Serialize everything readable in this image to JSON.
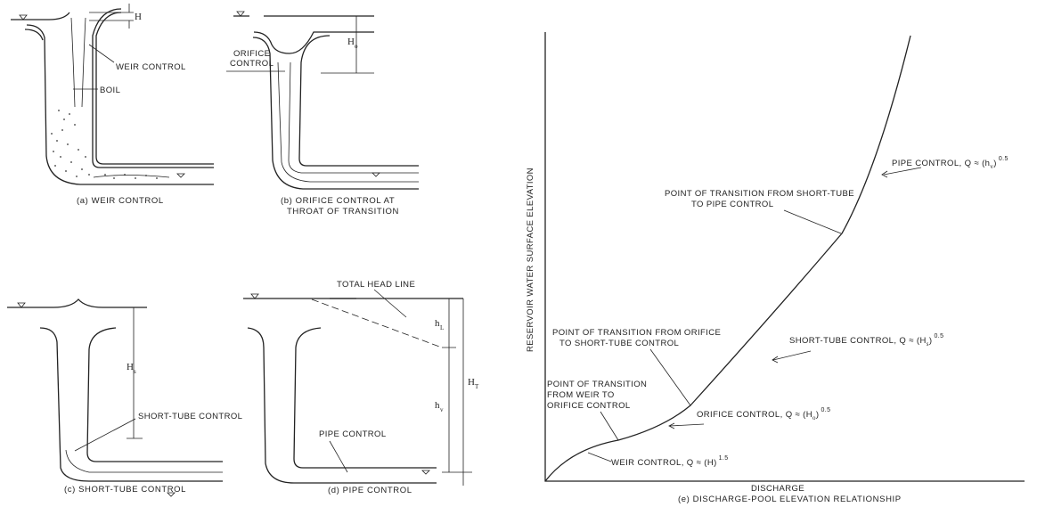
{
  "panel_a": {
    "head_label": "H",
    "weir_control_label": "WEIR CONTROL",
    "boil_label": "BOIL",
    "caption": "(a)    WEIR  CONTROL"
  },
  "panel_b": {
    "orifice_label_1": "ORIFICE",
    "orifice_label_2": "CONTROL",
    "head_label": "H",
    "head_sub": "o",
    "caption_1": "(b)  ORIFICE CONTROL AT",
    "caption_2": "THROAT OF TRANSITION"
  },
  "panel_c": {
    "head_label": "H",
    "head_sub": "s",
    "short_tube_label": "SHORT-TUBE CONTROL",
    "caption": "(c)    SHORT-TUBE  CONTROL"
  },
  "panel_d": {
    "total_head_line": "TOTAL HEAD LINE",
    "hl_label": "h",
    "hl_sub": "L",
    "hv_label": "h",
    "hv_sub": "v",
    "ht_label": "H",
    "ht_sub": "T",
    "pipe_control_label": "PIPE CONTROL",
    "caption": "(d)  PIPE  CONTROL"
  },
  "panel_e": {
    "y_axis_label": "RESERVOIR  WATER  SURFACE  ELEVATION",
    "x_axis_label": "DISCHARGE",
    "caption": "(e)    DISCHARGE-POOL  ELEVATION  RELATIONSHIP",
    "annotations": {
      "pipe_control": "PIPE CONTROL,  Q ≈ (h",
      "pipe_control_sub": "v",
      "pipe_control_exp": ")",
      "pipe_control_pow": "0.5",
      "transition_st_pipe_1": "POINT OF TRANSITION FROM SHORT-TUBE",
      "transition_st_pipe_2": "TO PIPE CONTROL",
      "short_tube_control": "SHORT-TUBE CONTROL,  Q ≈ (H",
      "short_tube_control_sub": "s",
      "short_tube_control_exp": ")",
      "short_tube_control_pow": "0.5",
      "transition_or_st_1": "POINT OF TRANSITION FROM ORIFICE",
      "transition_or_st_2": "TO SHORT-TUBE CONTROL",
      "transition_weir_or_1": "POINT OF TRANSITION",
      "transition_weir_or_2": "FROM WEIR TO",
      "transition_weir_or_3": "ORIFICE CONTROL",
      "orifice_control": "ORIFICE CONTROL,  Q ≈ (H",
      "orifice_control_sub": "o",
      "orifice_control_exp": ")",
      "orifice_control_pow": "0.5",
      "weir_control": "WEIR CONTROL,  Q ≈ (H)",
      "weir_control_pow": "1.5"
    }
  }
}
